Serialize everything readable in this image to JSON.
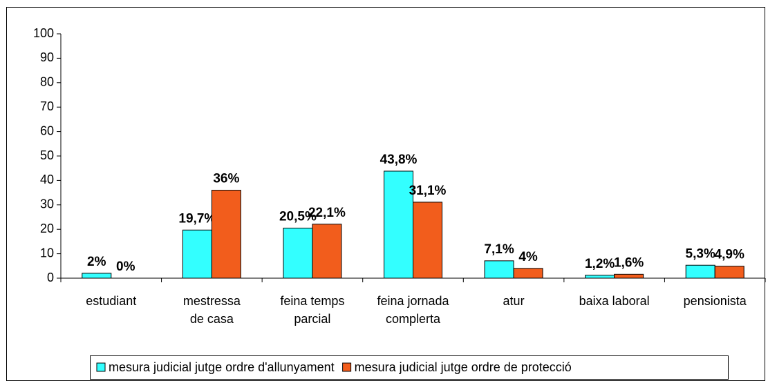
{
  "chart_data": {
    "type": "bar",
    "categories": [
      "estudiant",
      "mestressa\nde casa",
      "feina temps\nparcial",
      "feina jornada\ncomplerta",
      "atur",
      "baixa laboral",
      "pensionista"
    ],
    "series": [
      {
        "name": "mesura judicial jutge ordre d'allunyament",
        "color": "#33ffff",
        "values": [
          2,
          19.7,
          20.5,
          43.8,
          7.1,
          1.2,
          5.3
        ],
        "value_labels": [
          "2%",
          "19,7%",
          "20,5%",
          "43,8%",
          "7,1%",
          "1,2%",
          "5,3%"
        ]
      },
      {
        "name": "mesura judicial jutge ordre de protecció",
        "color": "#f25d1c",
        "values": [
          0,
          36,
          22.1,
          31.1,
          4,
          1.6,
          4.9
        ],
        "value_labels": [
          "0%",
          "36%",
          "22,1%",
          "31,1%",
          "4%",
          "1,6%",
          "4,9%"
        ]
      }
    ],
    "ylim": [
      0,
      100
    ],
    "yticks": [
      0,
      10,
      20,
      30,
      40,
      50,
      60,
      70,
      80,
      90,
      100
    ],
    "grid": false,
    "legend": "bottom"
  }
}
